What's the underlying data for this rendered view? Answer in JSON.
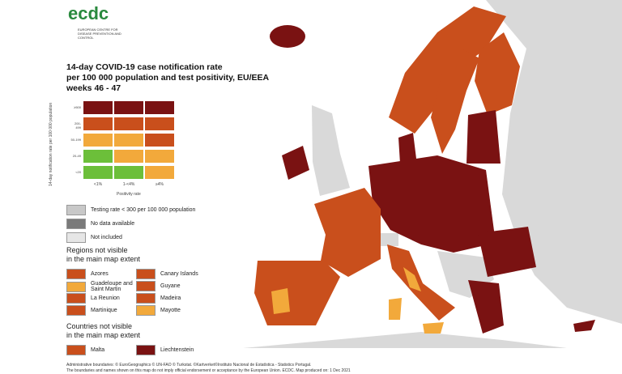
{
  "logo": {
    "text": "ecdc",
    "subtitle": "EUROPEAN CENTRE FOR DISEASE PREVENTION AND CONTROL"
  },
  "title": [
    "14-day COVID-19 case notification rate",
    "per 100 000 population and test positivity, EU/EEA",
    "weeks 46 - 47"
  ],
  "matrix": {
    "y_axis": "14-day notification rate per 100 000 population",
    "x_axis": "Positivity rate",
    "columns": [
      "<1%",
      "1-<4%",
      "≥4%"
    ],
    "rows": [
      "≥500",
      "200-499",
      "50-199",
      "20-49",
      "<20"
    ]
  },
  "legend": [
    {
      "label": "Testing rate < 300 per 100 000 population",
      "color": "#c8c8c8"
    },
    {
      "label": "No data available",
      "color": "#7a7a7a"
    },
    {
      "label": "Not included",
      "color": "#e6e6e6"
    }
  ],
  "regions": {
    "heading": [
      "Regions not visible",
      "in the main map extent"
    ],
    "items": [
      {
        "label": "Azores",
        "color": "#c94f1c"
      },
      {
        "label": "Canary Islands",
        "color": "#c94f1c"
      },
      {
        "label": "Guadeloupe and Saint Martin",
        "color": "#f2a93b"
      },
      {
        "label": "Guyane",
        "color": "#c94f1c"
      },
      {
        "label": "La Reunion",
        "color": "#c94f1c"
      },
      {
        "label": "Madeira",
        "color": "#c94f1c"
      },
      {
        "label": "Martinique",
        "color": "#c94f1c"
      },
      {
        "label": "Mayotte",
        "color": "#f2a93b"
      }
    ]
  },
  "countries": {
    "heading": [
      "Countries not visible",
      "in the main map extent"
    ],
    "items": [
      {
        "label": "Malta",
        "color": "#c94f1c"
      },
      {
        "label": "Liechtenstein",
        "color": "#7a1212"
      }
    ]
  },
  "footer": [
    "Administrative boundaries: © EuroGeographics © UN-FAO © Turkstat. ©Kartverket©Instituto Nacional de Estatística - Statistics Portugal.",
    "The boundaries and names shown on this map do not imply official endorsement or acceptance by the European Union. ECDC. Map produced on: 1 Dec 2021"
  ]
}
